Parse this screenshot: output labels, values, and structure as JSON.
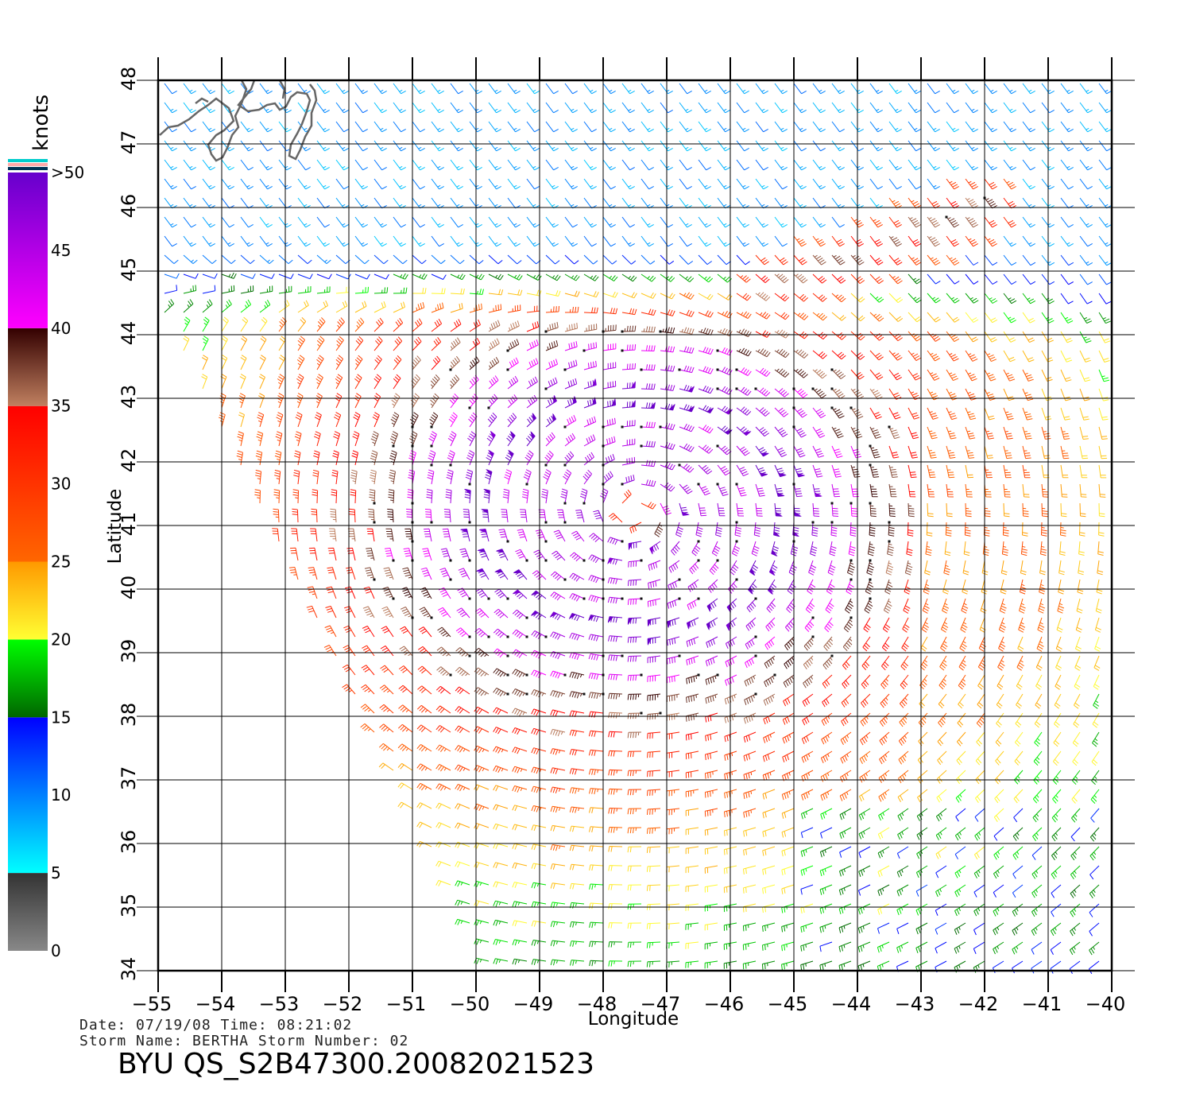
{
  "footer": {
    "date_line": "Date: 07/19/08   Time: 08:21:02",
    "storm_line": "Storm Name: BERTHA   Storm Number: 02",
    "file_id": "BYU  QS_S2B47300.20082021523"
  },
  "colorbar": {
    "unit": "knots",
    "labels": [
      ">50",
      "45",
      "40",
      "35",
      "30",
      "25",
      "20",
      "15",
      "10",
      "5",
      "0"
    ],
    "segments": [
      {
        "from": 0,
        "to": 5,
        "top": "#333333",
        "bottom": "#888888"
      },
      {
        "from": 5,
        "to": 15,
        "top": "#0000ff",
        "bottom": "#00ffff"
      },
      {
        "from": 15,
        "to": 20,
        "top": "#00ff00",
        "bottom": "#006600"
      },
      {
        "from": 20,
        "to": 25,
        "top": "#ff9900",
        "bottom": "#ffff33"
      },
      {
        "from": 25,
        "to": 35,
        "top": "#ff0000",
        "bottom": "#ff6600"
      },
      {
        "from": 35,
        "to": 40,
        "top": "#330000",
        "bottom": "#c08060"
      },
      {
        "from": 40,
        "to": 50,
        "top": "#6600cc",
        "bottom": "#ff00ff"
      }
    ],
    "top_stripes": [
      "#00cccc",
      "#ffaaaa",
      "#003355"
    ]
  },
  "chart_data": {
    "type": "wind barb map",
    "xlabel": "Longitude",
    "ylabel": "Latitude",
    "xlim": [
      -55,
      -40
    ],
    "ylim": [
      34,
      48
    ],
    "x_ticks": [
      -55,
      -54,
      -53,
      -52,
      -51,
      -50,
      -49,
      -48,
      -47,
      -46,
      -45,
      -44,
      -43,
      -42,
      -41,
      -40
    ],
    "y_ticks": [
      34,
      35,
      36,
      37,
      38,
      39,
      40,
      41,
      42,
      43,
      44,
      45,
      46,
      47,
      48
    ],
    "x_tick_labels": [
      "−55",
      "−54",
      "−53",
      "−52",
      "−51",
      "−50",
      "−49",
      "−48",
      "−47",
      "−46",
      "−45",
      "−44",
      "−43",
      "−42",
      "−41",
      "−40"
    ],
    "y_tick_labels": [
      "34",
      "35",
      "36",
      "37",
      "38",
      "39",
      "40",
      "41",
      "42",
      "43",
      "44",
      "45",
      "46",
      "47",
      "48"
    ],
    "grid": true,
    "storm_center": {
      "lon": -47.5,
      "lat": 41.2
    },
    "secondary_jet": {
      "from": [
        -45.5,
        44.8
      ],
      "to": [
        -42.0,
        46.1
      ]
    },
    "wind_field_sample_spacing_deg": 0.3,
    "swath_edge_west": [
      [
        -55,
        44.3
      ],
      [
        -49.8,
        34.1
      ]
    ],
    "coastline_labels": []
  }
}
